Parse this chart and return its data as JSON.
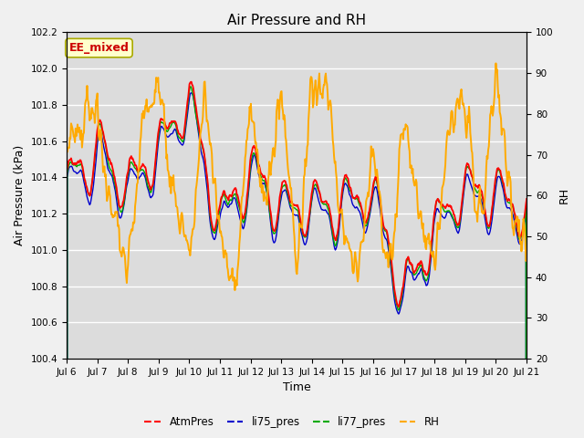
{
  "title": "Air Pressure and RH",
  "xlabel": "Time",
  "ylabel_left": "Air Pressure (kPa)",
  "ylabel_right": "RH",
  "ylim_left": [
    100.4,
    102.2
  ],
  "ylim_right": [
    20,
    100
  ],
  "yticks_left": [
    100.4,
    100.6,
    100.8,
    101.0,
    101.2,
    101.4,
    101.6,
    101.8,
    102.0,
    102.2
  ],
  "yticks_right": [
    20,
    30,
    40,
    50,
    60,
    70,
    80,
    90,
    100
  ],
  "xtick_labels": [
    "Jul 6",
    "Jul 7",
    "Jul 8",
    "Jul 9",
    "Jul 10",
    "Jul 11",
    "Jul 12",
    "Jul 13",
    "Jul 14",
    "Jul 15",
    "Jul 16",
    "Jul 17",
    "Jul 18",
    "Jul 19",
    "Jul 20",
    "Jul 21"
  ],
  "series_colors": {
    "AtmPres": "#ff0000",
    "li75_pres": "#0000cc",
    "li77_pres": "#00aa00",
    "RH": "#ffaa00"
  },
  "annotation_text": "EE_mixed",
  "annotation_color": "#cc0000",
  "annotation_bg": "#ffffcc",
  "annotation_edge": "#aaaa00",
  "fig_bg": "#f0f0f0",
  "plot_bg": "#dcdcdc",
  "grid_color": "#ffffff",
  "linewidth_atm": 1.3,
  "linewidth_li": 1.0,
  "linewidth_rh": 1.4
}
